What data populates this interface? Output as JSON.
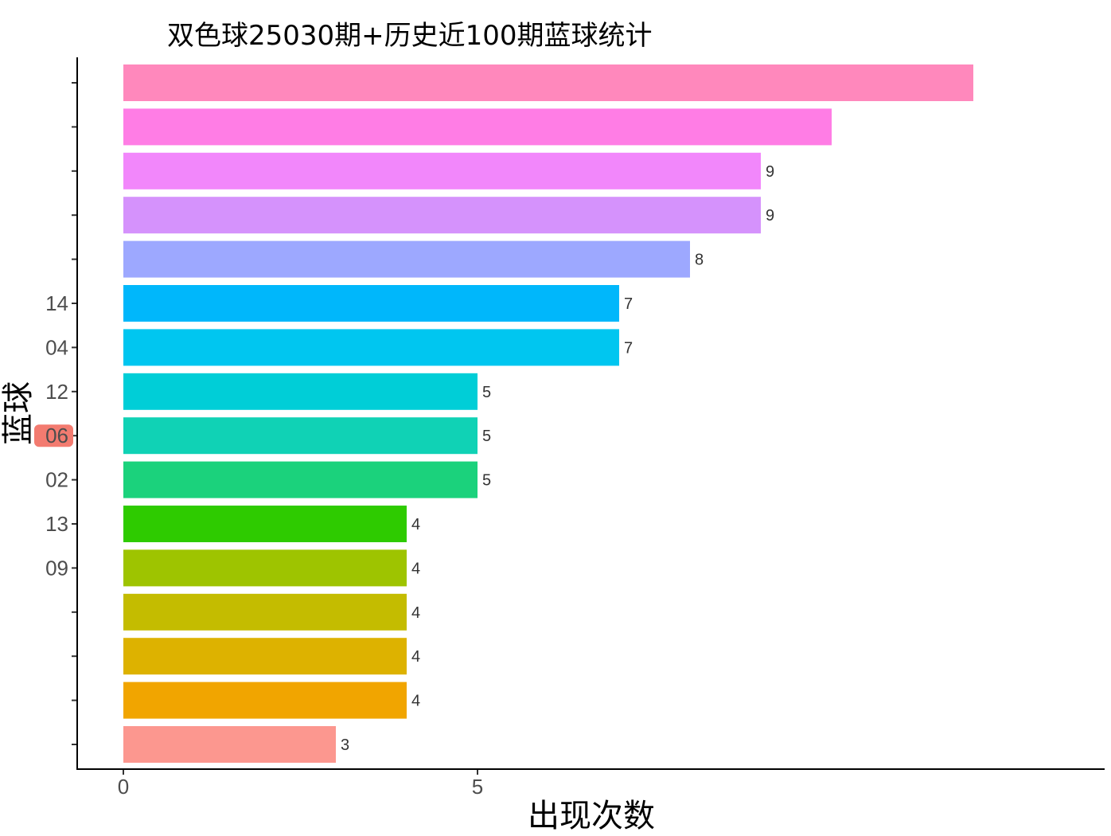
{
  "chart_data": {
    "type": "bar",
    "orientation": "horizontal",
    "title": "双色球25030期+历史近100期蓝球统计",
    "xlabel": "出现次数",
    "ylabel": "蓝球",
    "xlim": [
      0,
      13.8
    ],
    "x_ticks": [
      0,
      5
    ],
    "grid": false,
    "legend": "none",
    "bars": [
      {
        "category": "",
        "value": 12,
        "label": "",
        "color": "#FF88BC"
      },
      {
        "category": "",
        "value": 10,
        "label": "",
        "color": "#FF7DE5"
      },
      {
        "category": "",
        "value": 9,
        "label": "9",
        "color": "#F287FB"
      },
      {
        "category": "",
        "value": 9,
        "label": "9",
        "color": "#D592FC"
      },
      {
        "category": "",
        "value": 8,
        "label": "8",
        "color": "#9DA8FF"
      },
      {
        "category": "14",
        "value": 7,
        "label": "7",
        "color": "#00B7FB"
      },
      {
        "category": "04",
        "value": 7,
        "label": "7",
        "color": "#00C6F0"
      },
      {
        "category": "12",
        "value": 5,
        "label": "5",
        "color": "#00CED7"
      },
      {
        "category": "06",
        "value": 5,
        "label": "5",
        "color": "#10D2B5",
        "highlight": "#F37B70"
      },
      {
        "category": "02",
        "value": 5,
        "label": "5",
        "color": "#1BD27C"
      },
      {
        "category": "13",
        "value": 4,
        "label": "4",
        "color": "#2ECB00"
      },
      {
        "category": "09",
        "value": 4,
        "label": "4",
        "color": "#9EC400"
      },
      {
        "category": "",
        "value": 4,
        "label": "4",
        "color": "#C4BC00"
      },
      {
        "category": "",
        "value": 4,
        "label": "4",
        "color": "#DDB200"
      },
      {
        "category": "",
        "value": 4,
        "label": "4",
        "color": "#F1A500"
      },
      {
        "category": "",
        "value": 3,
        "label": "3",
        "color": "#FC978F"
      }
    ]
  }
}
